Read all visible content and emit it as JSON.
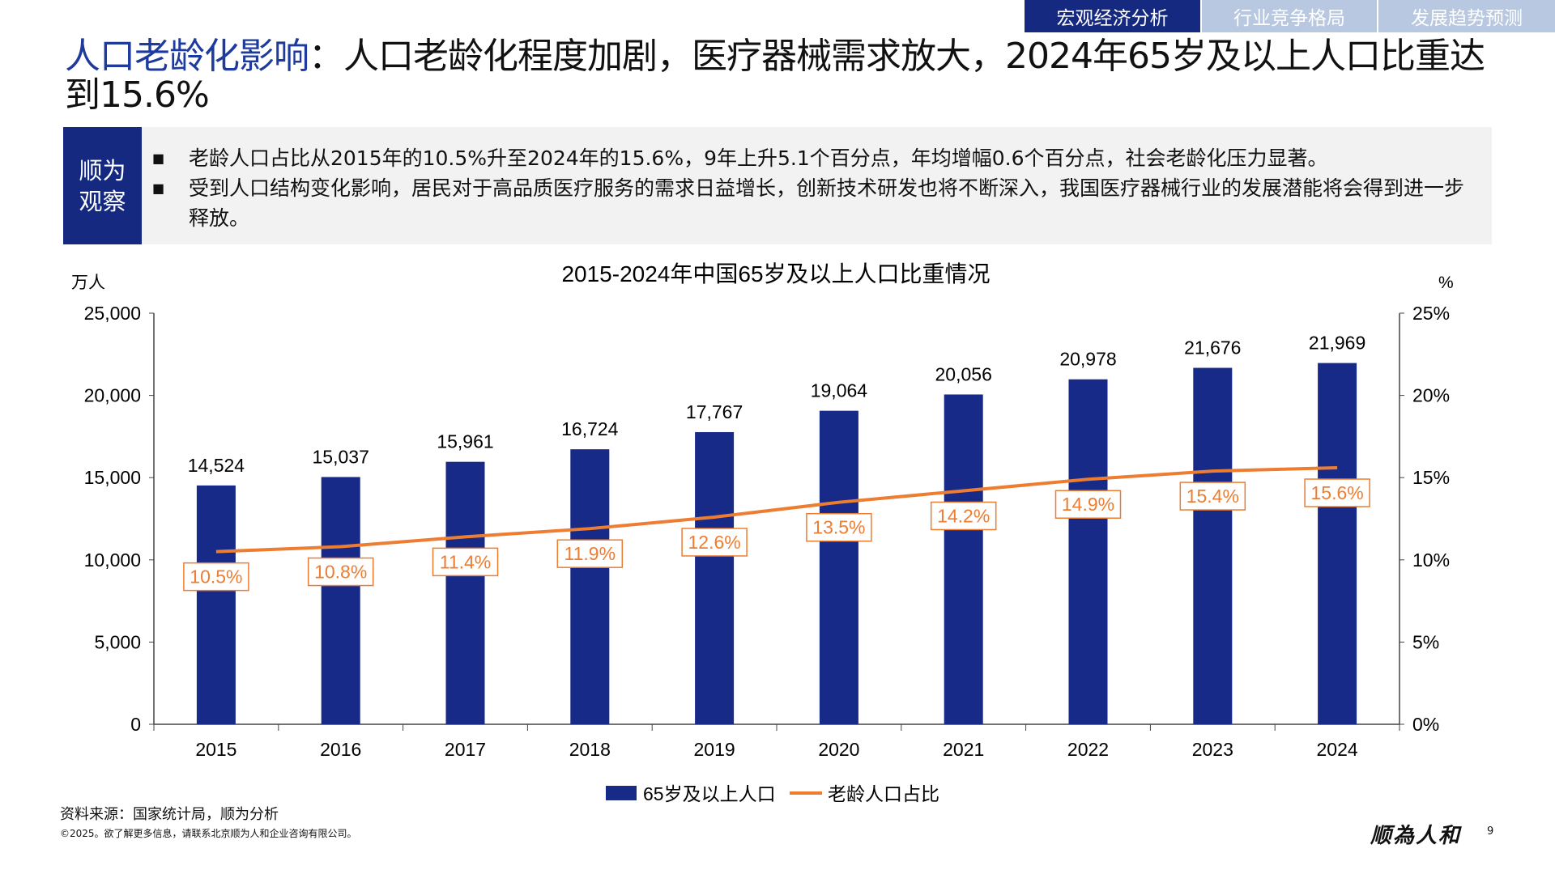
{
  "nav_tabs": [
    {
      "label": "宏观经济分析",
      "active": true
    },
    {
      "label": "行业竞争格局",
      "active": false
    },
    {
      "label": "发展趋势预测",
      "active": false
    }
  ],
  "title": {
    "highlight": "人口老龄化影响",
    "rest": "：人口老龄化程度加剧，医疗器械需求放大，2024年65岁及以上人口比重达到15.6%"
  },
  "observation": {
    "label": "顺为观察",
    "bullets": [
      "老龄人口占比从2015年的10.5%升至2024年的15.6%，9年上升5.1个百分点，年均增幅0.6个百分点，社会老龄化压力显著。",
      "受到人口结构变化影响，居民对于高品质医疗服务的需求日益增长，创新技术研发也将不断深入，我国医疗器械行业的发展潜能将会得到进一步释放。"
    ]
  },
  "chart_data": {
    "type": "bar+line",
    "title": "2015-2024年中国65岁及以上人口比重情况",
    "ylabel_left": "万人",
    "ylabel_right": "%",
    "ylim_left": [
      0,
      25000
    ],
    "yticks_left": [
      "0",
      "5,000",
      "10,000",
      "15,000",
      "20,000",
      "25,000"
    ],
    "ylim_right": [
      0,
      25
    ],
    "yticks_right": [
      "0%",
      "5%",
      "10%",
      "15%",
      "20%",
      "25%"
    ],
    "categories": [
      "2015",
      "2016",
      "2017",
      "2018",
      "2019",
      "2020",
      "2021",
      "2022",
      "2023",
      "2024"
    ],
    "series": [
      {
        "name": "65岁及以上人口",
        "type": "bar",
        "axis": "left",
        "color": "#172a88",
        "values": [
          14524,
          15037,
          15961,
          16724,
          17767,
          19064,
          20056,
          20978,
          21676,
          21969
        ],
        "labels": [
          "14,524",
          "15,037",
          "15,961",
          "16,724",
          "17,767",
          "19,064",
          "20,056",
          "20,978",
          "21,676",
          "21,969"
        ]
      },
      {
        "name": "老龄人口占比",
        "type": "line",
        "axis": "right",
        "color": "#ed7d31",
        "values": [
          10.5,
          10.8,
          11.4,
          11.9,
          12.6,
          13.5,
          14.2,
          14.9,
          15.4,
          15.6
        ],
        "labels": [
          "10.5%",
          "10.8%",
          "11.4%",
          "11.9%",
          "12.6%",
          "13.5%",
          "14.2%",
          "14.9%",
          "15.4%",
          "15.6%"
        ]
      }
    ],
    "legend": "bottom",
    "grid": false
  },
  "footer": {
    "source": "资料来源：国家统计局，顺为分析",
    "copyright": "©2025。欲了解更多信息，请联系北京顺为人和企业咨询有限公司。",
    "logo": "顺為人和",
    "page": "9"
  }
}
